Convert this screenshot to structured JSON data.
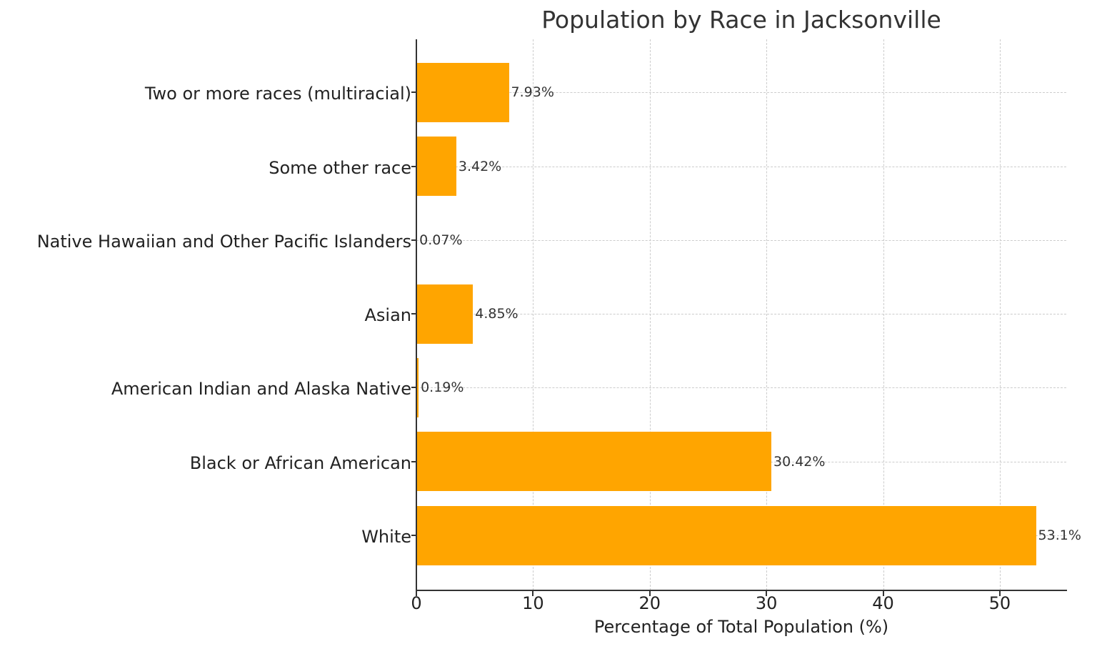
{
  "chart_data": {
    "type": "bar",
    "orientation": "horizontal",
    "title": "Population by Race in Jacksonville",
    "xlabel": "Percentage of Total Population (%)",
    "ylabel": "",
    "categories": [
      "White",
      "Black or African American",
      "American Indian and Alaska Native",
      "Asian",
      "Native Hawaiian and Other Pacific Islanders",
      "Some other race",
      "Two or more races (multiracial)"
    ],
    "values": [
      53.1,
      30.42,
      0.19,
      4.85,
      0.07,
      3.42,
      7.93
    ],
    "value_labels": [
      "53.1%",
      "30.42%",
      "0.19%",
      "4.85%",
      "0.07%",
      "3.42%",
      "7.93%"
    ],
    "xlim": [
      0,
      55.7
    ],
    "xticks": [
      0,
      10,
      20,
      30,
      40,
      50
    ],
    "xtick_labels": [
      "0",
      "10",
      "20",
      "30",
      "40",
      "50"
    ],
    "grid": true,
    "grid_style": "dashed",
    "bar_color": "#ffa500",
    "legend": null
  }
}
